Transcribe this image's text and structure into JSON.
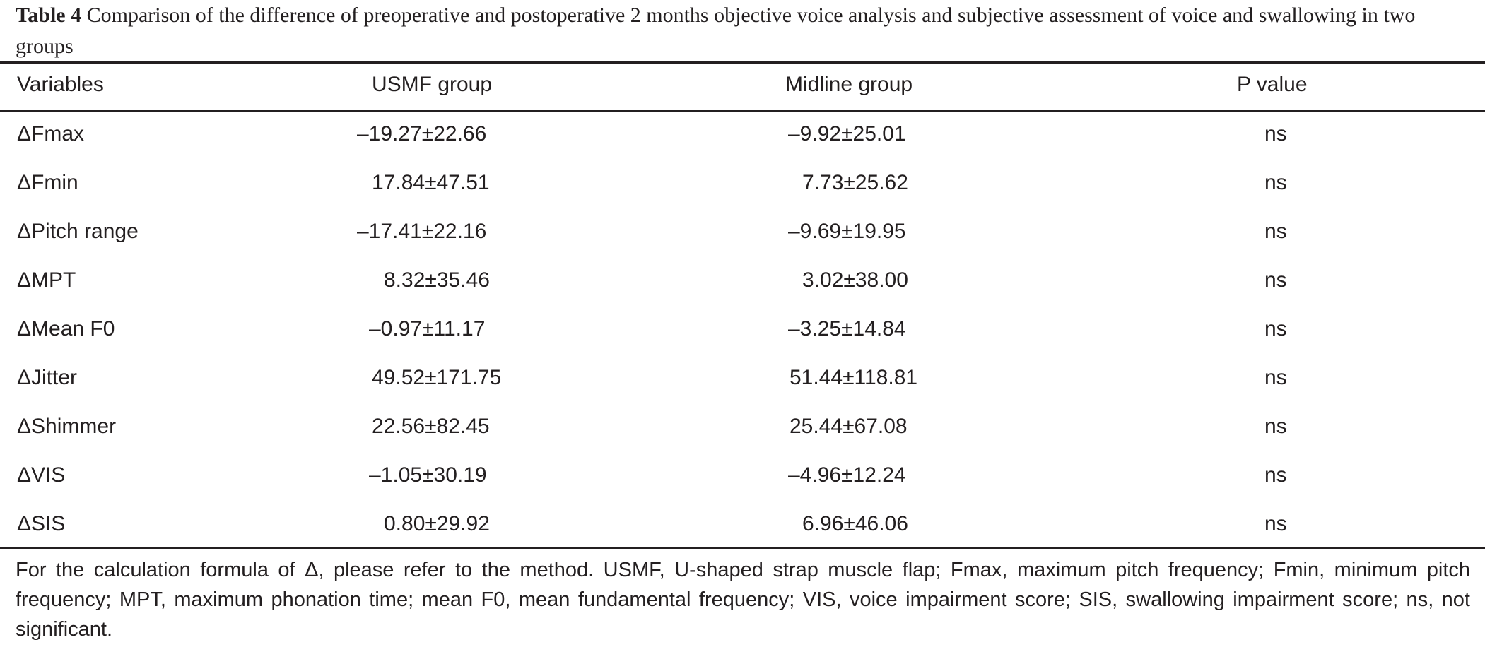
{
  "caption": {
    "label": "Table 4",
    "text": "Comparison of the difference of preoperative and postoperative 2 months objective voice analysis and subjective assessment of voice and swallowing in two groups"
  },
  "table": {
    "headers": [
      "Variables",
      "USMF group",
      "Midline group",
      "P value"
    ],
    "rows": [
      {
        "variable": "ΔFmax",
        "usmf": "–19.27±22.66",
        "midline": "–9.92±25.01",
        "p": "ns"
      },
      {
        "variable": "ΔFmin",
        "usmf": "17.84±47.51",
        "midline": "7.73±25.62",
        "p": "ns"
      },
      {
        "variable": "ΔPitch range",
        "usmf": "–17.41±22.16",
        "midline": "–9.69±19.95",
        "p": "ns"
      },
      {
        "variable": "ΔMPT",
        "usmf": "8.32±35.46",
        "midline": "3.02±38.00",
        "p": "ns"
      },
      {
        "variable": "ΔMean F0",
        "usmf": "–0.97±11.17",
        "midline": "–3.25±14.84",
        "p": "ns"
      },
      {
        "variable": "ΔJitter",
        "usmf": "49.52±171.75",
        "midline": "51.44±118.81",
        "p": "ns"
      },
      {
        "variable": "ΔShimmer",
        "usmf": "22.56±82.45",
        "midline": "25.44±67.08",
        "p": "ns"
      },
      {
        "variable": "ΔVIS",
        "usmf": "–1.05±30.19",
        "midline": "–4.96±12.24",
        "p": "ns"
      },
      {
        "variable": "ΔSIS",
        "usmf": "0.80±29.92",
        "midline": "6.96±46.06",
        "p": "ns"
      }
    ]
  },
  "footnote": "For the calculation formula of Δ, please refer to the method. USMF, U-shaped strap muscle flap; Fmax, maximum pitch frequency; Fmin, minimum pitch frequency; MPT, maximum phonation time; mean F0, mean fundamental frequency; VIS, voice impairment score; SIS, swallowing impairment score; ns, not significant."
}
